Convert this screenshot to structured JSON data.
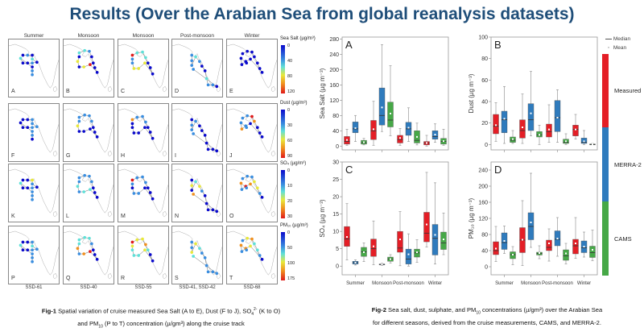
{
  "title": "Results (Over the Arabian Sea from global reanalysis datasets)",
  "fig1": {
    "seasons": [
      "Summer",
      "Monsoon",
      "Monsoon",
      "Post-monsoon",
      "Winter"
    ],
    "cruises": [
      "SSD-61",
      "SSD-40",
      "SSD-55",
      "SSD-41, SSD-42",
      "SSD-68"
    ],
    "rows": [
      {
        "colorbar_title": "Sea Salt (µg/m³)",
        "ticks": [
          "0",
          "40",
          "80",
          "120"
        ],
        "vmax": 120,
        "panels": [
          {
            "letter": "A",
            "values": [
              5,
              30,
              5,
              45,
              5,
              30,
              5,
              5,
              50,
              10,
              30,
              35
            ]
          },
          {
            "letter": "B",
            "values": [
              55,
              45,
              40,
              10,
              5,
              5,
              5,
              110,
              75,
              5,
              75,
              5
            ]
          },
          {
            "letter": "C",
            "values": [
              120,
              55,
              45,
              60,
              20,
              5,
              5,
              70,
              65,
              65,
              40,
              40
            ]
          },
          {
            "letter": "D",
            "values": [
              30,
              30,
              35,
              50,
              30,
              5,
              10,
              55,
              30,
              30,
              20,
              30
            ]
          },
          {
            "letter": "E",
            "values": [
              5,
              5,
              5,
              5,
              5,
              5,
              5,
              5,
              20,
              5,
              5,
              5
            ]
          }
        ]
      },
      {
        "colorbar_title": "Dust (µg/m³)",
        "ticks": [
          "0",
          "30",
          "60",
          "90"
        ],
        "vmax": 90,
        "panels": [
          {
            "letter": "F",
            "values": [
              5,
              5,
              20,
              20,
              30,
              20,
              5,
              5,
              5,
              20,
              20,
              5
            ]
          },
          {
            "letter": "G",
            "values": [
              25,
              20,
              20,
              20,
              15,
              5,
              5,
              5,
              5,
              5,
              50,
              20
            ]
          },
          {
            "letter": "H",
            "values": [
              65,
              20,
              20,
              25,
              5,
              5,
              5,
              5,
              5,
              5,
              5,
              5
            ]
          },
          {
            "letter": "I",
            "values": [
              5,
              20,
              20,
              20,
              5,
              5,
              5,
              5,
              5,
              5,
              5,
              20
            ]
          },
          {
            "letter": "J",
            "values": [
              20,
              20,
              90,
              65,
              5,
              5,
              5,
              5,
              20,
              70,
              20,
              20
            ]
          }
        ]
      },
      {
        "colorbar_title": "SO₄ (µg/m³)",
        "ticks": [
          "0",
          "10",
          "20",
          "30"
        ],
        "vmax": 30,
        "panels": [
          {
            "letter": "K",
            "values": [
              5,
              5,
              18,
              10,
              5,
              10,
              5,
              5,
              15,
              10,
              10,
              10
            ]
          },
          {
            "letter": "L",
            "values": [
              10,
              10,
              10,
              10,
              5,
              5,
              5,
              15,
              12,
              10,
              12,
              10
            ]
          },
          {
            "letter": "M",
            "values": [
              30,
              10,
              10,
              10,
              5,
              5,
              5,
              5,
              10,
              10,
              5,
              10
            ]
          },
          {
            "letter": "N",
            "values": [
              5,
              20,
              5,
              15,
              20,
              10,
              5,
              5,
              5,
              5,
              5,
              25
            ]
          },
          {
            "letter": "O",
            "values": [
              10,
              10,
              10,
              18,
              20,
              10,
              5,
              25,
              28,
              10,
              25,
              10
            ]
          }
        ]
      },
      {
        "colorbar_title": "PM₁₀ (µg/m³)",
        "ticks": [
          "0",
          "50",
          "100",
          "175"
        ],
        "vmax": 175,
        "panels": [
          {
            "letter": "P",
            "values": [
              5,
              10,
              40,
              60,
              40,
              40,
              5,
              5,
              80,
              40,
              40,
              30
            ]
          },
          {
            "letter": "Q",
            "values": [
              80,
              70,
              60,
              40,
              10,
              5,
              5,
              175,
              130,
              40,
              140,
              70
            ]
          },
          {
            "letter": "R",
            "values": [
              170,
              110,
              110,
              140,
              60,
              5,
              5,
              100,
              80,
              80,
              60,
              90
            ]
          },
          {
            "letter": "S",
            "values": [
              50,
              50,
              90,
              110,
              60,
              40,
              40,
              50,
              40,
              40,
              40,
              80
            ]
          },
          {
            "letter": "T",
            "values": [
              50,
              100,
              140,
              80,
              60,
              40,
              5,
              110,
              130,
              40,
              130,
              50
            ]
          }
        ]
      }
    ],
    "caption": {
      "label": "Fig-1",
      "line1": " Spatial variation of cruise measured  Sea Salt (A to E), Dust (F to J), SO",
      "so4_sub": "4",
      "so4_sup": "2-",
      "line1_end": " (K to O)",
      "line2": "and PM",
      "pm_sub": "10",
      "line2_end": " (P to T) concentration (µ/gm³)  along the cruise track"
    }
  },
  "fig2": {
    "legend": {
      "median": "Median",
      "mean": "Mean"
    },
    "sources": [
      {
        "name": "Measured",
        "color": "#e41e26"
      },
      {
        "name": "MERRA-2",
        "color": "#2f7bbd"
      },
      {
        "name": "CAMS",
        "color": "#46a847"
      }
    ],
    "caption": {
      "label": "Fig-2",
      "line1": " Sea salt, dust, sulphate, and PM",
      "pm_sub": "10",
      "line1_end": " concentrations (µ/gm³) over the  Arabian Sea",
      "line2": "for different seasons, derived from the cruise measurements, CAMS, and MERRA-2."
    }
  },
  "chart_data": [
    {
      "type": "box",
      "panel": "A",
      "ylabel": "Sea Salt (µg m⁻³)",
      "ylim": [
        -10,
        285
      ],
      "yticks": [
        0,
        40,
        80,
        120,
        160,
        200,
        240,
        280
      ],
      "categories": [
        "Summer",
        "Monsoon",
        "Post-monsoon",
        "Winter"
      ],
      "show_xticklabels": false,
      "stat_order": [
        "min",
        "q1",
        "median",
        "q3",
        "max",
        "mean"
      ],
      "series": [
        {
          "name": "Measured",
          "values": [
            [
              2,
              5,
              12,
              25,
              44,
              16
            ],
            [
              2,
              17,
              40,
              67,
              117,
              44
            ],
            [
              2,
              8,
              17,
              28,
              46,
              21
            ],
            [
              0,
              3,
              8,
              12,
              28,
              8
            ]
          ]
        },
        {
          "name": "MERRA-2",
          "values": [
            [
              12,
              35,
              45,
              63,
              80,
              47
            ],
            [
              38,
              55,
              80,
              152,
              265,
              101
            ],
            [
              12,
              28,
              45,
              62,
              100,
              48
            ],
            [
              10,
              18,
              25,
              40,
              58,
              30
            ]
          ]
        },
        {
          "name": "CAMS",
          "values": [
            [
              3,
              5,
              9,
              15,
              20,
              10
            ],
            [
              27,
              50,
              68,
              115,
              210,
              85
            ],
            [
              3,
              8,
              15,
              40,
              60,
              24
            ],
            [
              2,
              5,
              12,
              20,
              44,
              13
            ]
          ]
        }
      ]
    },
    {
      "type": "box",
      "panel": "B",
      "ylabel": "Dust (µg m⁻³)",
      "ylim": [
        -5,
        100
      ],
      "yticks": [
        0,
        20,
        40,
        60,
        80,
        100
      ],
      "categories": [
        "Summer",
        "Monsoon",
        "Post-monsoon",
        "Winter"
      ],
      "show_xticklabels": false,
      "stat_order": [
        "min",
        "q1",
        "median",
        "q3",
        "max",
        "mean"
      ],
      "series": [
        {
          "name": "Measured",
          "values": [
            [
              3,
              10,
              17,
              28,
              39,
              18
            ],
            [
              1,
              6,
              13,
              23,
              47,
              16
            ],
            [
              2,
              7,
              12,
              19,
              37,
              14
            ],
            [
              5,
              8,
              14,
              18,
              28,
              14
            ]
          ]
        },
        {
          "name": "MERRA-2",
          "values": [
            [
              1,
              11,
              23,
              31,
              54,
              24
            ],
            [
              8,
              13,
              23,
              38,
              68,
              29
            ],
            [
              2,
              12,
              25,
              41,
              51,
              25
            ],
            [
              0,
              1,
              2,
              6,
              13,
              3
            ]
          ]
        },
        {
          "name": "CAMS",
          "values": [
            [
              1,
              2,
              4,
              7,
              13,
              5
            ],
            [
              0,
              7,
              9,
              12,
              18,
              9
            ],
            [
              0,
              1,
              2,
              5,
              10,
              3
            ],
            [
              0,
              0,
              0,
              0.5,
              1,
              0.3
            ]
          ]
        }
      ]
    },
    {
      "type": "box",
      "panel": "C",
      "ylabel": "SO₄ (µg m⁻³)",
      "ylim": [
        -2.5,
        30
      ],
      "yticks": [
        0,
        5,
        10,
        15,
        20,
        25,
        30
      ],
      "categories": [
        "Summer",
        "Monsoon",
        "Post-monsoon",
        "Winter"
      ],
      "show_xticklabels": true,
      "stat_order": [
        "min",
        "q1",
        "median",
        "q3",
        "max",
        "mean"
      ],
      "series": [
        {
          "name": "Measured",
          "values": [
            [
              1.8,
              5.7,
              7.8,
              11.4,
              18,
              8.4
            ],
            [
              0.4,
              2.8,
              5,
              7.8,
              13,
              5.7
            ],
            [
              0.1,
              4,
              5.2,
              10,
              15.7,
              7.7
            ],
            [
              5.5,
              7,
              9.5,
              15.5,
              27,
              12
            ]
          ]
        },
        {
          "name": "MERRA-2",
          "values": [
            [
              0.3,
              0.6,
              1,
              1.4,
              1.8,
              1
            ],
            [
              0.2,
              0.4,
              0.5,
              0.6,
              0.8,
              0.5
            ],
            [
              0,
              0.6,
              2,
              4.9,
              9.3,
              3.4
            ],
            [
              0.6,
              3.2,
              8,
              12,
              24,
              9
            ]
          ]
        },
        {
          "name": "CAMS",
          "values": [
            [
              1.3,
              2.8,
              4.1,
              5.4,
              6.7,
              4
            ],
            [
              0.9,
              1.4,
              2,
              2.6,
              3.3,
              2
            ],
            [
              1.1,
              2.6,
              3.8,
              4.9,
              7.6,
              4
            ],
            [
              3.3,
              4.8,
              6.7,
              9.8,
              15.3,
              7.7
            ]
          ]
        }
      ]
    },
    {
      "type": "box",
      "panel": "D",
      "ylabel": "PM₁₀ (µg m⁻³)",
      "ylim": [
        -20,
        260
      ],
      "yticks": [
        0,
        40,
        80,
        120,
        160,
        200,
        240
      ],
      "categories": [
        "Summer",
        "Monsoon",
        "Post-monsoon",
        "Winter"
      ],
      "show_xticklabels": true,
      "stat_order": [
        "min",
        "q1",
        "median",
        "q3",
        "max",
        "mean"
      ],
      "series": [
        {
          "name": "Measured",
          "values": [
            [
              13,
              30,
              40,
              62,
              100,
              45
            ],
            [
              3,
              35,
              66,
              97,
              164,
              67
            ],
            [
              14,
              40,
              48,
              66,
              94,
              58
            ],
            [
              21,
              32,
              52,
              68,
              122,
              58
            ]
          ]
        },
        {
          "name": "MERRA-2",
          "values": [
            [
              33,
              43,
              60,
              84,
              101,
              64
            ],
            [
              48,
              67,
              100,
              134,
              232,
              110
            ],
            [
              26,
              52,
              68,
              89,
              122,
              70
            ],
            [
              24,
              35,
              47,
              64,
              86,
              50
            ]
          ]
        },
        {
          "name": "CAMS",
          "values": [
            [
              5,
              20,
              30,
              37,
              50,
              30
            ],
            [
              20,
              29,
              33,
              36,
              52,
              34
            ],
            [
              7,
              16,
              27,
              42,
              58,
              33
            ],
            [
              15,
              23,
              35,
              51,
              91,
              42
            ]
          ]
        }
      ]
    }
  ]
}
